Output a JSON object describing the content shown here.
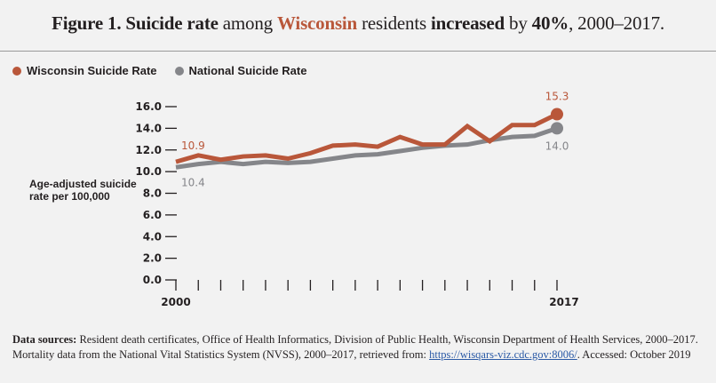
{
  "title": {
    "part1": "Figure 1. Suicide rate",
    "part2": " among ",
    "part3": "Wisconsin",
    "part4": " residents ",
    "part5": "increased",
    "part6": " by ",
    "part7": "40%",
    "part8": ", 2000–2017."
  },
  "legend": [
    {
      "label": "Wisconsin Suicide Rate",
      "color": "#b9573a"
    },
    {
      "label": "National Suicide Rate",
      "color": "#85868a"
    }
  ],
  "ylabel": "Age-adjusted suicide rate per 100,000",
  "sources": {
    "lead": "Data sources:",
    "text1": " Resident death certificates, Office of Health Informatics, Division of Public Health, Wisconsin Department of Health Services, 2000–2017. Mortality data from the National Vital Statistics System (NVSS), 2000–2017, retrieved from: ",
    "link": "https://wisqars-viz.cdc.gov:8006/",
    "text2": ". Accessed: October 2019"
  },
  "chart_data": {
    "type": "line",
    "title": "Figure 1. Suicide rate among Wisconsin residents increased by 40%, 2000–2017.",
    "xlabel": "",
    "ylabel": "Age-adjusted suicide rate per 100,000",
    "x": [
      2000,
      2001,
      2002,
      2003,
      2004,
      2005,
      2006,
      2007,
      2008,
      2009,
      2010,
      2011,
      2012,
      2013,
      2014,
      2015,
      2016,
      2017
    ],
    "x_tick_labels": [
      "2000",
      "2017"
    ],
    "y_ticks": [
      "0.0",
      "2.0",
      "4.0",
      "6.0",
      "8.0",
      "10.0",
      "12.0",
      "14.0",
      "16.0"
    ],
    "ylim": [
      0,
      16
    ],
    "grid": false,
    "legend_position": "top-left",
    "series": [
      {
        "name": "Wisconsin Suicide Rate",
        "color": "#b9573a",
        "values": [
          10.9,
          11.5,
          11.1,
          11.4,
          11.5,
          11.2,
          11.7,
          12.4,
          12.5,
          12.3,
          13.2,
          12.5,
          12.5,
          14.2,
          12.8,
          14.3,
          14.3,
          15.3
        ],
        "labels": {
          "start": "10.9",
          "end": "15.3"
        }
      },
      {
        "name": "National Suicide Rate",
        "color": "#85868a",
        "values": [
          10.4,
          10.7,
          10.9,
          10.7,
          10.9,
          10.8,
          10.9,
          11.2,
          11.5,
          11.6,
          11.9,
          12.2,
          12.4,
          12.5,
          12.9,
          13.2,
          13.3,
          14.0
        ],
        "labels": {
          "start": "10.4",
          "end": "14.0"
        }
      }
    ]
  }
}
